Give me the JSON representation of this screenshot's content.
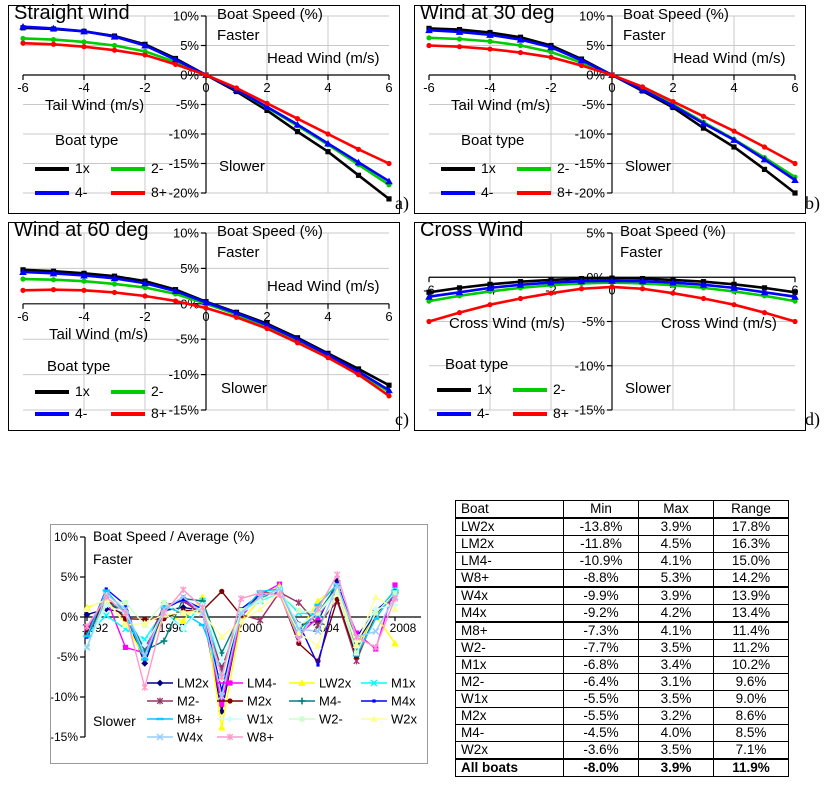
{
  "corner_labels": {
    "a": "a)",
    "b": "b)",
    "c": "c)",
    "d": "d)"
  },
  "chart_data": [
    {
      "id": "a",
      "type": "line",
      "title": "Straight wind",
      "ylabel": "Boat Speed (%)",
      "faster": "Faster",
      "slower": "Slower",
      "xlabel_head": "Head Wind (m/s)",
      "xlabel_tail": "Tail Wind (m/s)",
      "legend_title": "Boat type",
      "corner_label": "a)",
      "x": [
        -6,
        -5,
        -4,
        -3,
        -2,
        -1,
        0,
        1,
        2,
        3,
        4,
        5,
        6
      ],
      "xlim": [
        -6,
        6
      ],
      "ylim": [
        -20,
        10
      ],
      "y_tick_step": 5,
      "x_tick_step": 2,
      "series": [
        {
          "name": "1x",
          "color": "#000000",
          "marker": "square",
          "values": [
            8.0,
            7.8,
            7.4,
            6.6,
            5.2,
            2.8,
            0,
            -2.8,
            -6.0,
            -9.6,
            -13.0,
            -17.0,
            -21.0
          ]
        },
        {
          "name": "2-",
          "color": "#00CC00",
          "marker": "circle",
          "values": [
            6.2,
            6.0,
            5.6,
            5.0,
            4.0,
            2.2,
            0,
            -2.5,
            -5.5,
            -8.6,
            -11.8,
            -15.2,
            -18.6
          ]
        },
        {
          "name": "4-",
          "color": "#0000FF",
          "marker": "triangle",
          "values": [
            8.2,
            7.9,
            7.4,
            6.5,
            5.0,
            2.6,
            0,
            -2.5,
            -5.4,
            -8.4,
            -11.6,
            -14.8,
            -18.0
          ]
        },
        {
          "name": "8+",
          "color": "#FF0000",
          "marker": "circle",
          "values": [
            5.4,
            5.2,
            4.8,
            4.2,
            3.4,
            1.8,
            0,
            -2.2,
            -4.8,
            -7.4,
            -10.0,
            -12.6,
            -15.0
          ]
        }
      ]
    },
    {
      "id": "b",
      "type": "line",
      "title": "Wind at 30 deg",
      "ylabel": "Boat Speed (%)",
      "faster": "Faster",
      "slower": "Slower",
      "xlabel_head": "Head Wind (m/s)",
      "xlabel_tail": "Tail Wind (m/s)",
      "legend_title": "Boat type",
      "corner_label": "b)",
      "x": [
        -6,
        -5,
        -4,
        -3,
        -2,
        -1,
        0,
        1,
        2,
        3,
        4,
        5,
        6
      ],
      "xlim": [
        -6,
        6
      ],
      "ylim": [
        -20,
        10
      ],
      "y_tick_step": 5,
      "x_tick_step": 2,
      "series": [
        {
          "name": "1x",
          "color": "#000000",
          "marker": "square",
          "values": [
            7.9,
            7.7,
            7.2,
            6.4,
            5.0,
            2.7,
            0,
            -2.7,
            -5.5,
            -9.0,
            -12.2,
            -16.0,
            -20.0
          ]
        },
        {
          "name": "2-",
          "color": "#00CC00",
          "marker": "circle",
          "values": [
            6.3,
            6.1,
            5.7,
            5.0,
            3.9,
            2.1,
            0,
            -2.4,
            -5.0,
            -8.0,
            -10.9,
            -14.0,
            -17.3
          ]
        },
        {
          "name": "4-",
          "color": "#0000FF",
          "marker": "triangle",
          "values": [
            7.6,
            7.3,
            6.8,
            6.0,
            4.7,
            2.5,
            0,
            -2.5,
            -5.2,
            -8.2,
            -11.0,
            -14.3,
            -17.8
          ]
        },
        {
          "name": "8+",
          "color": "#FF0000",
          "marker": "circle",
          "values": [
            5.0,
            4.8,
            4.4,
            3.8,
            3.0,
            1.6,
            0,
            -2.0,
            -4.5,
            -7.0,
            -9.5,
            -12.2,
            -15.0
          ]
        }
      ]
    },
    {
      "id": "c",
      "type": "line",
      "title": "Wind at 60 deg",
      "ylabel": "Boat Speed (%)",
      "faster": "Faster",
      "slower": "Slower",
      "xlabel_head": "Head Wind (m/s)",
      "xlabel_tail": "Tail Wind (m/s)",
      "legend_title": "Boat type",
      "corner_label": "c)",
      "x": [
        -6,
        -5,
        -4,
        -3,
        -2,
        -1,
        0,
        1,
        2,
        3,
        4,
        5,
        6
      ],
      "xlim": [
        -6,
        6
      ],
      "ylim": [
        -15,
        10
      ],
      "y_tick_step": 5,
      "x_tick_step": 2,
      "series": [
        {
          "name": "1x",
          "color": "#000000",
          "marker": "square",
          "values": [
            4.8,
            4.6,
            4.3,
            3.9,
            3.2,
            2.0,
            0.3,
            -1.2,
            -2.8,
            -4.8,
            -7.0,
            -9.2,
            -11.5
          ]
        },
        {
          "name": "2-",
          "color": "#00CC00",
          "marker": "circle",
          "values": [
            3.5,
            3.4,
            3.2,
            2.8,
            2.3,
            1.4,
            0.0,
            -1.5,
            -3.2,
            -5.2,
            -7.4,
            -9.8,
            -12.4
          ]
        },
        {
          "name": "4-",
          "color": "#0000FF",
          "marker": "triangle",
          "values": [
            4.5,
            4.3,
            4.0,
            3.6,
            2.9,
            1.8,
            0.2,
            -1.3,
            -3.0,
            -5.0,
            -7.2,
            -9.6,
            -12.2
          ]
        },
        {
          "name": "8+",
          "color": "#FF0000",
          "marker": "circle",
          "values": [
            1.9,
            2.0,
            1.9,
            1.6,
            1.1,
            0.4,
            -0.6,
            -1.9,
            -3.5,
            -5.5,
            -7.6,
            -10.0,
            -13.0
          ]
        }
      ]
    },
    {
      "id": "d",
      "type": "line",
      "title": "Cross Wind",
      "ylabel": "Boat Speed (%)",
      "faster": "Faster",
      "slower": "Slower",
      "xlabel_left": "Cross Wind (m/s)",
      "xlabel_right": "Cross Wind (m/s)",
      "legend_title": "Boat type",
      "corner_label": "d)",
      "x": [
        -6,
        -5,
        -4,
        -3,
        -2,
        -1,
        0,
        1,
        2,
        3,
        4,
        5,
        6
      ],
      "xlim": [
        -6,
        6
      ],
      "ylim": [
        -15,
        5
      ],
      "y_tick_step": 5,
      "x_tick_step": 2,
      "series": [
        {
          "name": "1x",
          "color": "#000000",
          "marker": "square",
          "values": [
            -1.7,
            -1.2,
            -0.8,
            -0.5,
            -0.3,
            -0.15,
            -0.1,
            -0.15,
            -0.3,
            -0.5,
            -0.8,
            -1.2,
            -1.7
          ]
        },
        {
          "name": "2-",
          "color": "#00CC00",
          "marker": "circle",
          "values": [
            -2.7,
            -2.1,
            -1.6,
            -1.2,
            -0.9,
            -0.7,
            -0.6,
            -0.7,
            -0.9,
            -1.2,
            -1.6,
            -2.1,
            -2.7
          ]
        },
        {
          "name": "4-",
          "color": "#0000FF",
          "marker": "triangle",
          "values": [
            -2.2,
            -1.7,
            -1.2,
            -0.85,
            -0.6,
            -0.45,
            -0.4,
            -0.45,
            -0.6,
            -0.85,
            -1.2,
            -1.7,
            -2.2
          ]
        },
        {
          "name": "8+",
          "color": "#FF0000",
          "marker": "circle",
          "values": [
            -5.0,
            -4.0,
            -3.1,
            -2.4,
            -1.8,
            -1.3,
            -1.1,
            -1.3,
            -1.8,
            -2.4,
            -3.1,
            -4.0,
            -5.0
          ]
        }
      ]
    },
    {
      "id": "timeseries",
      "type": "line",
      "title": "Boat Speed / Average (%)",
      "faster": "Faster",
      "slower": "Slower",
      "x": [
        1992,
        1993,
        1994,
        1995,
        1996,
        1997,
        1998,
        1999,
        2000,
        2001,
        2002,
        2003,
        2004,
        2005,
        2006,
        2007,
        2008
      ],
      "x_tick_labels": [
        "1992",
        "1996",
        "2000",
        "2004",
        "2008"
      ],
      "x_tick_years": [
        1992,
        1996,
        2000,
        2004,
        2008
      ],
      "ylim": [
        -15,
        10
      ],
      "y_tick_step": 5,
      "series": [
        {
          "name": "LM2x",
          "color": "#000080",
          "marker": "diamond",
          "values": [
            0.3,
            1.0,
            0.5,
            -5.8,
            0.8,
            1.2,
            0.8,
            -11.8,
            0.3,
            2.5,
            3.0,
            -1.0,
            -0.5,
            4.5,
            -3.3,
            0.5,
            3.0
          ]
        },
        {
          "name": "LM4-",
          "color": "#FF00FF",
          "marker": "square",
          "values": [
            -1.5,
            2.3,
            -3.8,
            -4.5,
            1.0,
            2.2,
            0.5,
            -10.9,
            0.0,
            2.8,
            4.1,
            -2.2,
            -0.1,
            4.0,
            -2.0,
            -4.0,
            4.0
          ]
        },
        {
          "name": "LW2x",
          "color": "#FFFF00",
          "marker": "triangle",
          "values": [
            1.2,
            2.0,
            -0.8,
            -5.2,
            0.3,
            -0.5,
            2.5,
            -13.8,
            -0.5,
            2.2,
            3.9,
            -2.0,
            2.0,
            3.9,
            -3.5,
            0.2,
            -3.3
          ]
        },
        {
          "name": "M1x",
          "color": "#00FFFF",
          "marker": "x",
          "values": [
            -2.2,
            0.2,
            -1.5,
            -2.8,
            0.8,
            -1.5,
            2.0,
            -6.8,
            0.8,
            2.0,
            3.0,
            0.5,
            0.3,
            3.4,
            -4.5,
            0.5,
            3.4
          ]
        },
        {
          "name": "M2-",
          "color": "#993366",
          "marker": "star",
          "values": [
            -1.8,
            2.5,
            -0.2,
            -4.0,
            1.5,
            2.0,
            0.3,
            -6.4,
            0.3,
            -0.4,
            3.1,
            1.8,
            -1.0,
            2.0,
            -5.5,
            0.5,
            2.5
          ]
        },
        {
          "name": "M2x",
          "color": "#800000",
          "marker": "circle",
          "values": [
            -2.0,
            2.2,
            -0.2,
            -0.3,
            -0.2,
            0.8,
            0.8,
            3.2,
            0.2,
            3.0,
            3.0,
            -3.3,
            -5.5,
            2.2,
            -5.0,
            0.3,
            3.2
          ]
        },
        {
          "name": "M4-",
          "color": "#008080",
          "marker": "plus",
          "values": [
            -2.3,
            1.8,
            0.8,
            -4.2,
            -3.0,
            2.3,
            2.0,
            -4.5,
            0.5,
            2.5,
            3.0,
            -1.5,
            0.5,
            4.0,
            -4.4,
            0.5,
            3.0
          ]
        },
        {
          "name": "M4x",
          "color": "#0000FF",
          "marker": "dot",
          "values": [
            -2.5,
            3.5,
            1.5,
            -5.5,
            1.0,
            2.2,
            1.0,
            -9.2,
            1.0,
            2.8,
            3.0,
            -0.8,
            -6.0,
            4.2,
            -2.5,
            0.8,
            2.8
          ]
        },
        {
          "name": "M8+",
          "color": "#00CCFF",
          "marker": "dash",
          "values": [
            -2.4,
            3.3,
            0.5,
            -5.3,
            1.3,
            0.5,
            -1.0,
            -7.3,
            0.5,
            3.2,
            3.5,
            -2.5,
            1.5,
            4.1,
            -4.8,
            -0.2,
            3.3
          ]
        },
        {
          "name": "W1x",
          "color": "#CCFFFF",
          "marker": "diamond",
          "values": [
            -3.8,
            1.5,
            0.5,
            -3.5,
            0.5,
            -1.5,
            1.5,
            -5.5,
            0.5,
            2.0,
            3.5,
            -1.0,
            0.5,
            3.0,
            -3.0,
            1.0,
            1.5
          ]
        },
        {
          "name": "W2-",
          "color": "#CCFFCC",
          "marker": "square",
          "values": [
            -3.8,
            2.0,
            1.8,
            -1.0,
            1.8,
            0.5,
            1.0,
            -7.7,
            0.8,
            2.2,
            3.0,
            0.8,
            0.5,
            3.5,
            -4.5,
            0.5,
            3.0
          ]
        },
        {
          "name": "W2x",
          "color": "#FFFF99",
          "marker": "triangle",
          "values": [
            1.0,
            2.2,
            -1.0,
            -0.8,
            0.3,
            0.5,
            0.5,
            -2.5,
            -0.5,
            1.0,
            3.0,
            -2.0,
            -3.6,
            3.5,
            -3.5,
            2.5,
            1.0
          ]
        },
        {
          "name": "W4x",
          "color": "#99CCFF",
          "marker": "x",
          "values": [
            -3.8,
            2.8,
            1.0,
            -4.8,
            1.0,
            2.5,
            0.5,
            -9.9,
            0.5,
            2.5,
            3.5,
            -1.5,
            -1.8,
            3.9,
            -2.5,
            -1.8,
            2.5
          ]
        },
        {
          "name": "W8+",
          "color": "#FF99CC",
          "marker": "star",
          "values": [
            -1.2,
            2.5,
            0.5,
            -8.8,
            0.5,
            3.4,
            1.2,
            -7.5,
            2.3,
            3.0,
            2.8,
            -2.8,
            1.0,
            5.3,
            -2.5,
            -3.8,
            2.3
          ]
        }
      ]
    }
  ],
  "table": {
    "headers": [
      "Boat",
      "Min",
      "Max",
      "Range"
    ],
    "rows": [
      [
        "LW2x",
        "-13.8%",
        "3.9%",
        "17.8%"
      ],
      [
        "LM2x",
        "-11.8%",
        "4.5%",
        "16.3%"
      ],
      [
        "LM4-",
        "-10.9%",
        "4.1%",
        "15.0%"
      ],
      [
        "W8+",
        "-8.8%",
        "5.3%",
        "14.2%"
      ],
      [
        "W4x",
        "-9.9%",
        "3.9%",
        "13.9%"
      ],
      [
        "M4x",
        "-9.2%",
        "4.2%",
        "13.4%"
      ],
      [
        "M8+",
        "-7.3%",
        "4.1%",
        "11.4%"
      ],
      [
        "W2-",
        "-7.7%",
        "3.5%",
        "11.2%"
      ],
      [
        "M1x",
        "-6.8%",
        "3.4%",
        "10.2%"
      ],
      [
        "M2-",
        "-6.4%",
        "3.1%",
        "9.6%"
      ],
      [
        "W1x",
        "-5.5%",
        "3.5%",
        "9.0%"
      ],
      [
        "M2x",
        "-5.5%",
        "3.2%",
        "8.6%"
      ],
      [
        "M4-",
        "-4.5%",
        "4.0%",
        "8.5%"
      ],
      [
        "W2x",
        "-3.6%",
        "3.5%",
        "7.1%"
      ]
    ],
    "footer": [
      "All boats",
      "-8.0%",
      "3.9%",
      "11.9%"
    ],
    "thick_after_rows": [
      3,
      5
    ]
  }
}
